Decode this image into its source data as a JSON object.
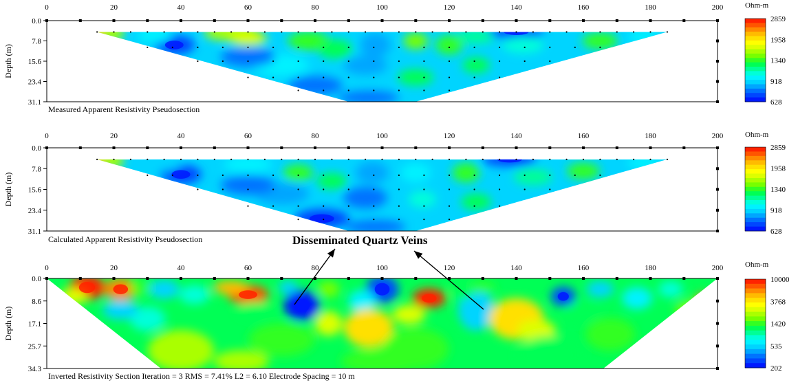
{
  "chart_data": [
    {
      "type": "heatmap",
      "title": "Measured Apparent Resistivity Pseudosection",
      "ylabel": "Depth (m)",
      "x_ticks": [
        0,
        20,
        40,
        60,
        80,
        100,
        120,
        140,
        160,
        180,
        200
      ],
      "y_ticks": [
        "0.0",
        "7.8",
        "15.6",
        "23.4",
        "31.1"
      ],
      "xlim": [
        0,
        200
      ],
      "ylim": [
        0,
        31.1
      ],
      "colorbar": {
        "unit": "Ohm-m",
        "labels": [
          "2859",
          "1958",
          "1340",
          "918",
          "628"
        ]
      }
    },
    {
      "type": "heatmap",
      "title": "Calculated Apparent Resistivity Pseudosection",
      "ylabel": "Depth (m)",
      "x_ticks": [
        0,
        20,
        40,
        60,
        80,
        100,
        120,
        140,
        160,
        180,
        200
      ],
      "y_ticks": [
        "0.0",
        "7.8",
        "15.6",
        "23.4",
        "31.1"
      ],
      "xlim": [
        0,
        200
      ],
      "ylim": [
        0,
        31.1
      ],
      "colorbar": {
        "unit": "Ohm-m",
        "labels": [
          "2859",
          "1958",
          "1340",
          "918",
          "628"
        ]
      }
    },
    {
      "type": "heatmap",
      "title": "Inverted Resistivity Section",
      "caption": "Inverted Resistivity Section     Iteration = 3    RMS = 7.41%    L2 = 6.10    Electrode Spacing = 10 m",
      "ylabel": "Depth (m)",
      "x_ticks": [
        0,
        20,
        40,
        60,
        80,
        100,
        120,
        140,
        160,
        180,
        200
      ],
      "y_ticks": [
        "0.0",
        "8.6",
        "17.1",
        "25.7",
        "34.3"
      ],
      "xlim": [
        0,
        200
      ],
      "ylim": [
        0,
        34.3
      ],
      "colorbar": {
        "unit": "Ohm-m",
        "labels": [
          "10000",
          "3768",
          "1420",
          "535",
          "202"
        ]
      }
    }
  ],
  "annotation": {
    "text": "Disseminated  Quartz Veins"
  },
  "palette": [
    "#0019ff",
    "#0046ff",
    "#0073ff",
    "#00a6ff",
    "#00d4ff",
    "#00f2ff",
    "#00ffd9",
    "#00ff96",
    "#00ff55",
    "#33ff22",
    "#77ff00",
    "#aaff00",
    "#ddff00",
    "#ffff00",
    "#ffe000",
    "#ffbb00",
    "#ff8a00",
    "#ff5500",
    "#ff2200"
  ]
}
